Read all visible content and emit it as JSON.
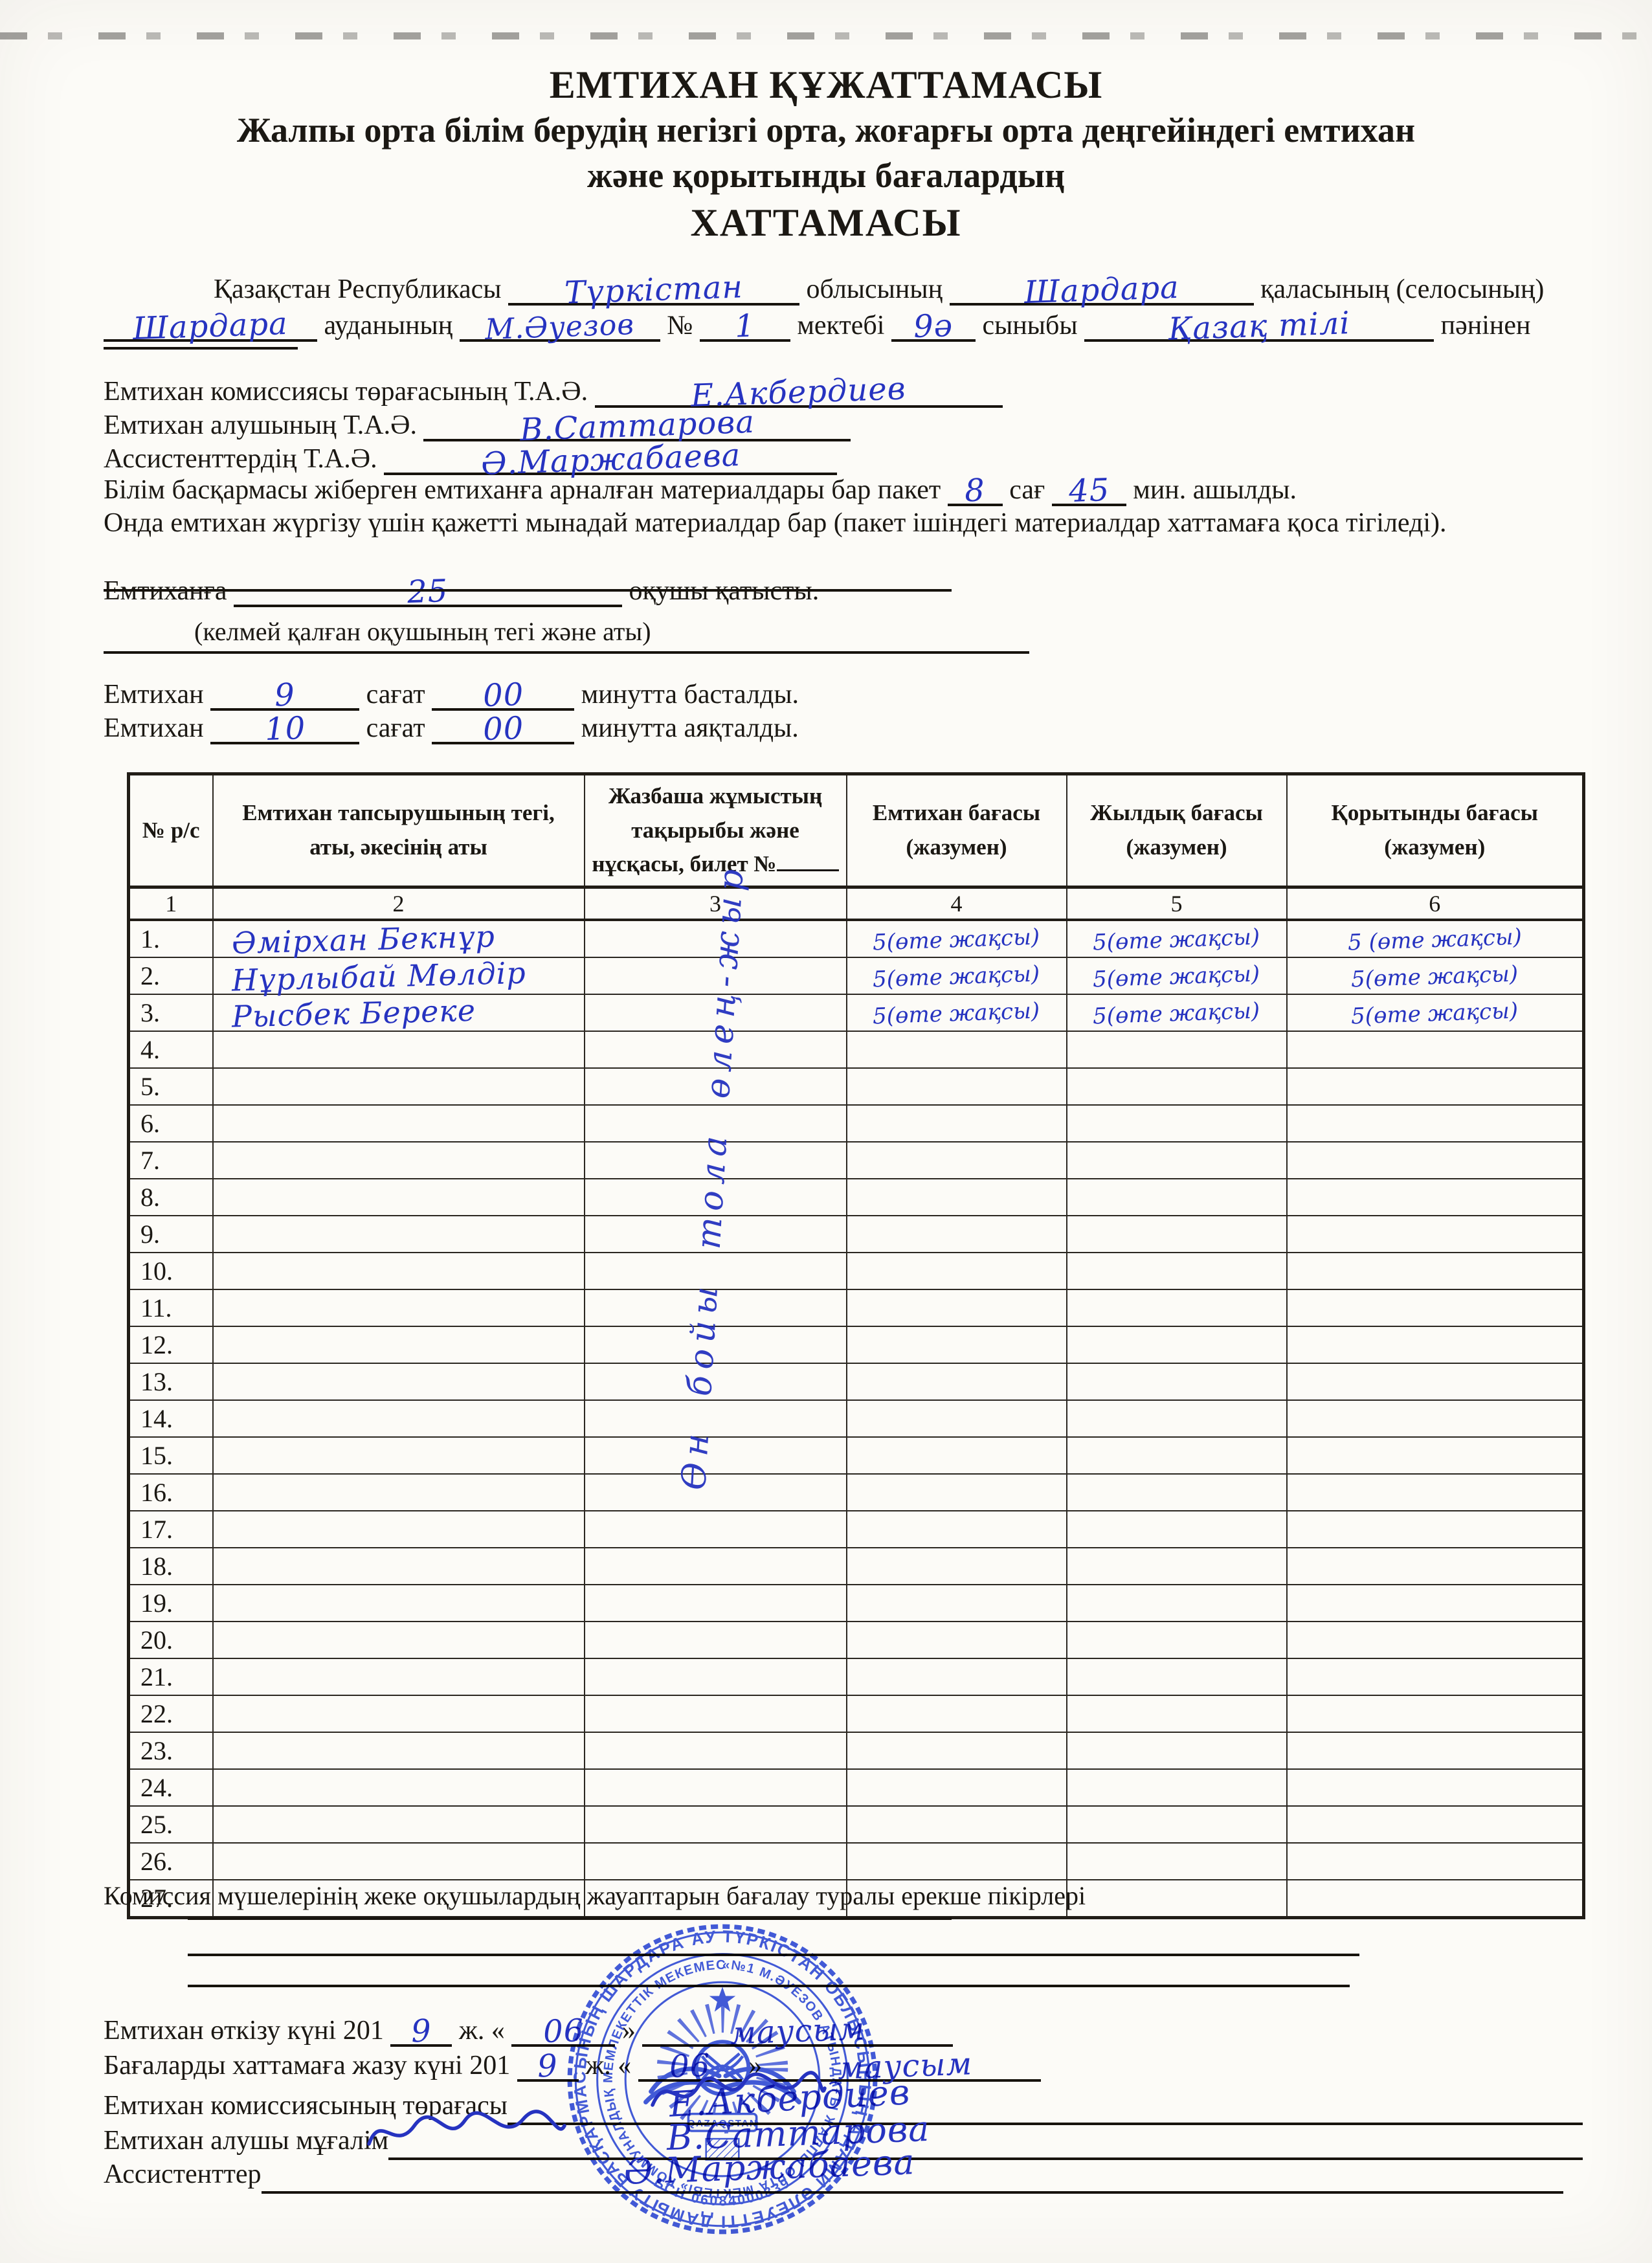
{
  "title": {
    "line1": "ЕМТИХАН ҚҰЖАТТАМАСЫ",
    "line2": "Жалпы орта білім берудің негізгі орта, жоғарғы орта деңгейіндегі емтихан",
    "line3": "және қорытынды бағалардың",
    "line4": "ХАТТАМАСЫ"
  },
  "intro": {
    "republic_label": "Қазақстан Республикасы",
    "region_value": "Түркістан",
    "region_label": "облысының",
    "city_value": "Шардара",
    "city_label": "қаласының (селосының)",
    "district_value": "Шардара",
    "district_label": "ауданының",
    "school_value": "М.Әуезов",
    "school_no_label": "№",
    "school_no_value": "1",
    "school_label": "мектебі",
    "class_value": "9ә",
    "class_label": "сыныбы",
    "subject_value": "Қазақ тілі",
    "subject_label": "пәнінен",
    "chairman_label": "Емтихан комиссиясы төрағасының Т.А.Ә.",
    "chairman_value": "Е.Акбердиев",
    "examiner_label": "Емтихан алушының Т.А.Ә.",
    "examiner_value": "В.Саттарова",
    "assistants_label": "Ассистенттердің Т.А.Ә.",
    "assistants_value": "Ә.Маржабаева",
    "package_label_1": "Білім басқармасы жіберген емтиханға арналған материалдары бар пакет",
    "package_hour_value": "8",
    "package_label_2": "сағ",
    "package_min_value": "45",
    "package_label_3": "мин. ашылды.",
    "materials_text": "Онда емтихан жүргізу үшін қажетті мынадай материалдар бар (пакет ішіндегі материалдар хаттамаға қоса тігіледі).",
    "attended_label_1": "Емтиханға",
    "attended_value": "25",
    "attended_label_2": "оқушы қатысты.",
    "absent_caption": "(келмей қалған оқушының тегі және аты)",
    "start_label_1": "Емтихан",
    "start_hour": "9",
    "start_label_2": "сағат",
    "start_min": "00",
    "start_label_3": "минутта басталды.",
    "end_label_1": "Емтихан",
    "end_hour": "10",
    "end_label_2": "сағат",
    "end_min": "00",
    "end_label_3": "минутта аяқталды."
  },
  "table": {
    "headers": {
      "col1": "№ р/с",
      "col2": "Емтихан тапсырушының тегі, аты, әкесінің аты",
      "col3": "Жазбаша жұмыстың тақырыбы және нұсқасы, билет №",
      "col4": "Емтихан бағасы (жазумен)",
      "col5": "Жылдық бағасы (жазумен)",
      "col6": "Қорытынды бағасы (жазумен)"
    },
    "col_numbers": [
      "1",
      "2",
      "3",
      "4",
      "5",
      "6"
    ],
    "vertical_note": "Өн бойы тола өлең-жыр",
    "rows": [
      {
        "no": "1.",
        "name": "Әмірхан Бекнұр",
        "exam": "5(өте жақсы)",
        "annual": "5(өте жақсы)",
        "final": "5 (өте жақсы)"
      },
      {
        "no": "2.",
        "name": "Нұрлыбай Мөлдір",
        "exam": "5(өте жақсы)",
        "annual": "5(өте жақсы)",
        "final": "5(өте жақсы)"
      },
      {
        "no": "3.",
        "name": "Рысбек Береке",
        "exam": "5(өте жақсы)",
        "annual": "5(өте жақсы)",
        "final": "5(өте жақсы)"
      },
      {
        "no": "4.",
        "name": "",
        "exam": "",
        "annual": "",
        "final": ""
      },
      {
        "no": "5.",
        "name": "",
        "exam": "",
        "annual": "",
        "final": ""
      },
      {
        "no": "6.",
        "name": "",
        "exam": "",
        "annual": "",
        "final": ""
      },
      {
        "no": "7.",
        "name": "",
        "exam": "",
        "annual": "",
        "final": ""
      },
      {
        "no": "8.",
        "name": "",
        "exam": "",
        "annual": "",
        "final": ""
      },
      {
        "no": "9.",
        "name": "",
        "exam": "",
        "annual": "",
        "final": ""
      },
      {
        "no": "10.",
        "name": "",
        "exam": "",
        "annual": "",
        "final": ""
      },
      {
        "no": "11.",
        "name": "",
        "exam": "",
        "annual": "",
        "final": ""
      },
      {
        "no": "12.",
        "name": "",
        "exam": "",
        "annual": "",
        "final": ""
      },
      {
        "no": "13.",
        "name": "",
        "exam": "",
        "annual": "",
        "final": ""
      },
      {
        "no": "14.",
        "name": "",
        "exam": "",
        "annual": "",
        "final": ""
      },
      {
        "no": "15.",
        "name": "",
        "exam": "",
        "annual": "",
        "final": ""
      },
      {
        "no": "16.",
        "name": "",
        "exam": "",
        "annual": "",
        "final": ""
      },
      {
        "no": "17.",
        "name": "",
        "exam": "",
        "annual": "",
        "final": ""
      },
      {
        "no": "18.",
        "name": "",
        "exam": "",
        "annual": "",
        "final": ""
      },
      {
        "no": "19.",
        "name": "",
        "exam": "",
        "annual": "",
        "final": ""
      },
      {
        "no": "20.",
        "name": "",
        "exam": "",
        "annual": "",
        "final": ""
      },
      {
        "no": "21.",
        "name": "",
        "exam": "",
        "annual": "",
        "final": ""
      },
      {
        "no": "22.",
        "name": "",
        "exam": "",
        "annual": "",
        "final": ""
      },
      {
        "no": "23.",
        "name": "",
        "exam": "",
        "annual": "",
        "final": ""
      },
      {
        "no": "24.",
        "name": "",
        "exam": "",
        "annual": "",
        "final": ""
      },
      {
        "no": "25.",
        "name": "",
        "exam": "",
        "annual": "",
        "final": ""
      },
      {
        "no": "26.",
        "name": "",
        "exam": "",
        "annual": "",
        "final": ""
      },
      {
        "no": "27.",
        "name": "",
        "exam": "",
        "annual": "",
        "final": ""
      }
    ]
  },
  "footer": {
    "opinions_label": "Комиссия мүшелерінің жеке оқушылардың жауаптарын бағалау туралы ерекше пікірлері",
    "exam_date_label": "Емтихан өткізу күні 201",
    "exam_date_year": "9",
    "zh_label": "ж.",
    "quote_open": "«",
    "exam_date_day": "06",
    "quote_close": "»",
    "exam_date_month": "маусым",
    "record_date_label": "Бағаларды хаттамаға жазу күні 201",
    "record_date_year": "9",
    "record_date_day": "06",
    "record_date_month": "маусым",
    "chairman_label": "Емтихан комиссиясының төрағасы",
    "chairman_value": "Е.Акбердиев",
    "teacher_label": "Емтихан алушы мұғалім",
    "teacher_value": "В.Саттарова",
    "assistants_label": "Ассистенттер",
    "assistants_value": "Ә.Маржабаева"
  },
  "stamp": {
    "outer_text": "ТҮРКІСТАН ОБЛЫСЫНЫҢ АДАМИ ӘЛЕУЕТТІ ДАМЫТУ БАСҚАРМАСЫНЫҢ ШАРДАРА АУДАНЫНЫҢ",
    "inner_text": "«№1 М.ӘУЕЗОВ АТЫНДАҒЫ ЖАЛПЫ ОРТА МЕКТЕБІ» КОММУНАЛДЫҚ МЕМЛЕКЕТТІК МЕКЕМЕСІ",
    "bin_text": "БСН 06084000839",
    "center_text": "QAZAQSTAN"
  },
  "colors": {
    "ink": "#2633c0",
    "stamp": "#2e49da",
    "print": "#1b1813",
    "paper": "#fcfbf7"
  }
}
